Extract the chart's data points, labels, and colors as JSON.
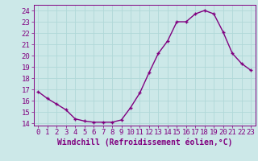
{
  "x": [
    0,
    1,
    2,
    3,
    4,
    5,
    6,
    7,
    8,
    9,
    10,
    11,
    12,
    13,
    14,
    15,
    16,
    17,
    18,
    19,
    20,
    21,
    22,
    23
  ],
  "y": [
    16.8,
    16.2,
    15.7,
    15.2,
    14.4,
    14.2,
    14.1,
    14.1,
    14.1,
    14.3,
    15.4,
    16.7,
    18.5,
    20.2,
    21.3,
    23.0,
    23.0,
    23.7,
    24.0,
    23.7,
    22.1,
    20.2,
    19.3,
    18.7
  ],
  "line_color": "#800080",
  "marker_color": "#800080",
  "bg_color": "#cce8e8",
  "grid_color": "#b0d8d8",
  "xlabel": "Windchill (Refroidissement éolien,°C)",
  "xlim": [
    -0.5,
    23.5
  ],
  "ylim": [
    13.8,
    24.5
  ],
  "yticks": [
    14,
    15,
    16,
    17,
    18,
    19,
    20,
    21,
    22,
    23,
    24
  ],
  "xticks": [
    0,
    1,
    2,
    3,
    4,
    5,
    6,
    7,
    8,
    9,
    10,
    11,
    12,
    13,
    14,
    15,
    16,
    17,
    18,
    19,
    20,
    21,
    22,
    23
  ],
  "tick_label_color": "#800080",
  "axis_label_color": "#800080",
  "font_size_ticks": 6.5,
  "font_size_xlabel": 7.0,
  "line_width": 1.0,
  "marker_size": 3.5
}
